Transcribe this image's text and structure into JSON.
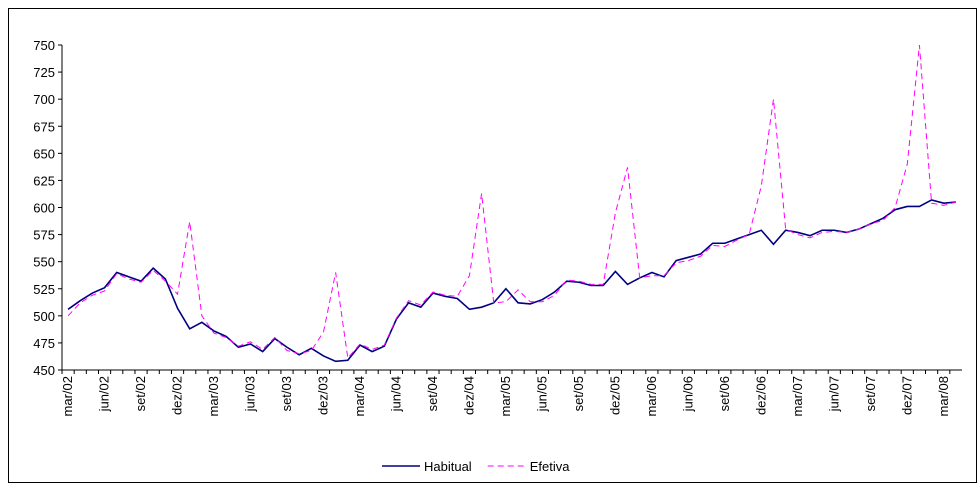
{
  "chart_data": {
    "type": "line",
    "categories": [
      "mar/02",
      null,
      null,
      "jun/02",
      null,
      null,
      "set/02",
      null,
      null,
      "dez/02",
      null,
      null,
      "mar/03",
      null,
      null,
      "jun/03",
      null,
      null,
      "set/03",
      null,
      null,
      "dez/03",
      null,
      null,
      "mar/04",
      null,
      null,
      "jun/04",
      null,
      null,
      "set/04",
      null,
      null,
      "dez/04",
      null,
      null,
      "mar/05",
      null,
      null,
      "jun/05",
      null,
      null,
      "set/05",
      null,
      null,
      "dez/05",
      null,
      null,
      "mar/06",
      null,
      null,
      "jun/06",
      null,
      null,
      "set/06",
      null,
      null,
      "dez/06",
      null,
      null,
      "mar/07",
      null,
      null,
      "jun/07",
      null,
      null,
      "set/07",
      null,
      null,
      "dez/07",
      null,
      null,
      "mar/08",
      null
    ],
    "series": [
      {
        "name": "Habitual",
        "color": "#000080",
        "dash": false,
        "values": [
          506,
          514,
          521,
          526,
          540,
          536,
          532,
          544,
          534,
          507,
          488,
          494,
          486,
          481,
          471,
          474,
          467,
          479,
          471,
          464,
          470,
          463,
          458,
          459,
          473,
          467,
          472,
          497,
          512,
          508,
          521,
          518,
          516,
          506,
          508,
          512,
          525,
          512,
          511,
          515,
          522,
          532,
          531,
          528,
          528,
          541,
          529,
          535,
          540,
          536,
          551,
          554,
          557,
          567,
          567,
          571,
          575,
          579,
          566,
          579,
          577,
          574,
          579,
          579,
          577,
          580,
          585,
          590,
          598,
          601,
          601,
          607,
          604,
          605
        ]
      },
      {
        "name": "Efetiva",
        "color": "#ff00ff",
        "dash": true,
        "values": [
          500,
          512,
          519,
          523,
          539,
          534,
          531,
          542,
          532,
          520,
          587,
          500,
          484,
          480,
          472,
          476,
          469,
          480,
          468,
          465,
          468,
          485,
          540,
          461,
          474,
          469,
          473,
          498,
          514,
          510,
          522,
          519,
          518,
          537,
          613,
          512,
          513,
          524,
          513,
          513,
          519,
          533,
          532,
          529,
          529,
          595,
          637,
          535,
          537,
          537,
          549,
          551,
          555,
          565,
          564,
          570,
          575,
          620,
          700,
          580,
          575,
          572,
          577,
          578,
          577,
          580,
          585,
          588,
          600,
          640,
          750,
          604,
          602,
          605
        ]
      }
    ],
    "ylim": [
      450,
      750
    ],
    "yticks": [
      450,
      475,
      500,
      525,
      550,
      575,
      600,
      625,
      650,
      675,
      700,
      725,
      750
    ],
    "legend": "bottom"
  }
}
